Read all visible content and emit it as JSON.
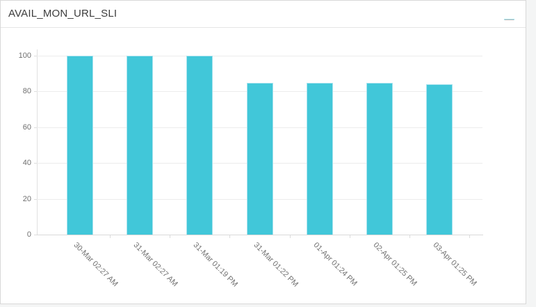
{
  "card": {
    "title": "AVAIL_MON_URL_SLI",
    "menu_icon": "hamburger-menu"
  },
  "colors": {
    "bar_fill": "#41c7d9",
    "bar_border": "#a9e3ee",
    "grid_line": "#ececec",
    "axis_line": "#d9d9d9",
    "axis_label_text": "#6e6e6e",
    "title_text": "#3c3c3c",
    "page_background": "#f4f5f5",
    "card_background": "#ffffff",
    "menu_icon_gray": "#b4b4b4"
  },
  "chart_data": {
    "type": "bar",
    "title": "AVAIL_MON_URL_SLI",
    "categories": [
      "30-Mar 02:27 AM",
      "31-Mar 02:27 AM",
      "31-Mar 01:19 PM",
      "31-Mar 01:22 PM",
      "01-Apr 01:24 PM",
      "02-Apr 01:25 PM",
      "03-Apr 01:25 PM"
    ],
    "values": [
      100,
      100,
      100,
      85,
      85,
      85,
      84
    ],
    "xlabel": "",
    "ylabel": "",
    "ylim": [
      0,
      100
    ],
    "yticks": [
      0,
      20,
      40,
      60,
      80,
      100
    ],
    "grid": "horizontal",
    "legend": "none",
    "x_label_rotation_deg": 45,
    "bar_color": "#41c7d9"
  }
}
